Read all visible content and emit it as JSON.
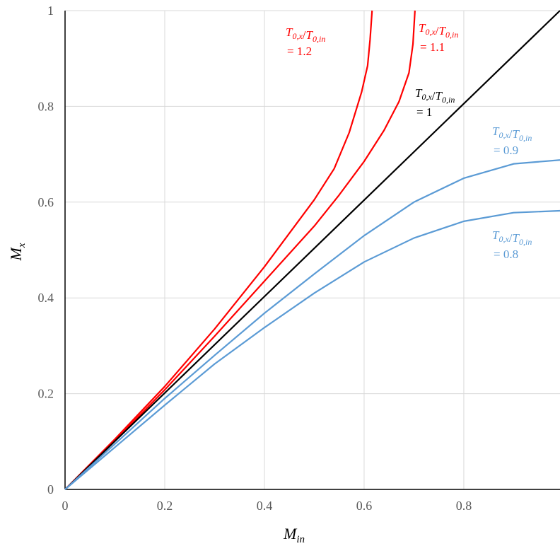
{
  "chart_data": {
    "type": "line",
    "title": "",
    "xlabel": {
      "base": "M",
      "sub": "in"
    },
    "ylabel": {
      "base": "M",
      "sub": "x"
    },
    "xlim": [
      0,
      0.993
    ],
    "ylim": [
      0,
      1
    ],
    "x_ticks": [
      "0",
      "0.2",
      "0.4",
      "0.6",
      "0.8"
    ],
    "y_ticks": [
      "0",
      "0.2",
      "0.4",
      "0.6",
      "0.8",
      "1"
    ],
    "grid": true,
    "series": [
      {
        "id": "ratio-1.2",
        "color": "#ff0000",
        "points": [
          [
            0,
            0
          ],
          [
            0.1,
            0.105
          ],
          [
            0.2,
            0.215
          ],
          [
            0.3,
            0.335
          ],
          [
            0.4,
            0.465
          ],
          [
            0.45,
            0.535
          ],
          [
            0.5,
            0.605
          ],
          [
            0.54,
            0.67
          ],
          [
            0.57,
            0.745
          ],
          [
            0.595,
            0.83
          ],
          [
            0.607,
            0.885
          ],
          [
            0.612,
            0.94
          ],
          [
            0.616,
            1.0
          ]
        ]
      },
      {
        "id": "ratio-1.1",
        "color": "#ff0000",
        "points": [
          [
            0,
            0
          ],
          [
            0.1,
            0.102
          ],
          [
            0.2,
            0.208
          ],
          [
            0.3,
            0.32
          ],
          [
            0.4,
            0.435
          ],
          [
            0.5,
            0.55
          ],
          [
            0.55,
            0.615
          ],
          [
            0.6,
            0.685
          ],
          [
            0.64,
            0.75
          ],
          [
            0.67,
            0.81
          ],
          [
            0.69,
            0.87
          ],
          [
            0.698,
            0.93
          ],
          [
            0.702,
            1.0
          ]
        ]
      },
      {
        "id": "ratio-1",
        "color": "#000000",
        "points": [
          [
            0,
            0
          ],
          [
            0.993,
            1.0
          ]
        ]
      },
      {
        "id": "ratio-0.9",
        "color": "#5b9bd5",
        "points": [
          [
            0,
            0
          ],
          [
            0.1,
            0.095
          ],
          [
            0.2,
            0.19
          ],
          [
            0.3,
            0.28
          ],
          [
            0.4,
            0.368
          ],
          [
            0.5,
            0.45
          ],
          [
            0.6,
            0.53
          ],
          [
            0.7,
            0.6
          ],
          [
            0.8,
            0.65
          ],
          [
            0.9,
            0.68
          ],
          [
            0.993,
            0.688
          ]
        ]
      },
      {
        "id": "ratio-0.8",
        "color": "#5b9bd5",
        "points": [
          [
            0,
            0
          ],
          [
            0.1,
            0.088
          ],
          [
            0.2,
            0.176
          ],
          [
            0.3,
            0.262
          ],
          [
            0.4,
            0.338
          ],
          [
            0.5,
            0.41
          ],
          [
            0.6,
            0.475
          ],
          [
            0.7,
            0.525
          ],
          [
            0.8,
            0.56
          ],
          [
            0.9,
            0.578
          ],
          [
            0.993,
            0.582
          ]
        ]
      }
    ],
    "annotations": [
      {
        "id": "ann-1.2",
        "color": "#ff0000",
        "ratio": "T0,x/T0,in",
        "value": "= 1.2"
      },
      {
        "id": "ann-1.1",
        "color": "#ff0000",
        "ratio": "T0,x/T0,in",
        "value": "= 1.1"
      },
      {
        "id": "ann-1",
        "color": "#000000",
        "ratio": "T0,x/T0,in",
        "value": "= 1"
      },
      {
        "id": "ann-0.9",
        "color": "#5b9bd5",
        "ratio": "T0,x/T0,in",
        "value": "= 0.9"
      },
      {
        "id": "ann-0.8",
        "color": "#5b9bd5",
        "ratio": "T0,x/T0,in",
        "value": "= 0.8"
      }
    ]
  }
}
